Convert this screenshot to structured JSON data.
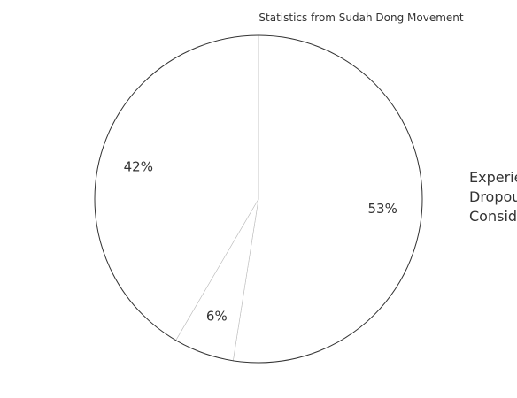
{
  "chart_data": {
    "type": "pie",
    "title": "Statistics from Sudah Dong Movement",
    "slices": [
      {
        "label": "Experie",
        "value": 53,
        "display": "53%",
        "color": "#ffffff"
      },
      {
        "label": "Dropou",
        "value": 6,
        "display": "6%",
        "color": "#ffffff"
      },
      {
        "label": "Consid",
        "value": 42,
        "display": "42%",
        "color": "#ffffff"
      }
    ],
    "legend_position": "right",
    "stroke_color": "#333333"
  }
}
